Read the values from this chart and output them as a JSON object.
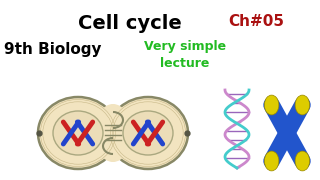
{
  "bg_color": "#ffffff",
  "title_text": "Cell cycle",
  "title_color": "#000000",
  "title_fontsize": 14,
  "ch_text": "Ch#05",
  "ch_color": "#aa1111",
  "ch_fontsize": 11,
  "bio_text": "9th Biology",
  "bio_color": "#000000",
  "bio_fontsize": 11,
  "simple_text": "Very simple\nlecture",
  "simple_color": "#22bb22",
  "simple_fontsize": 9,
  "cell_face": "#f2e4c0",
  "cell_edge": "#888866",
  "nucleus_face": "#ecddb8",
  "nucleus_edge": "#aaa880",
  "chr_red": "#cc2222",
  "chr_blue": "#2244cc",
  "dna_strand1": "#cc88cc",
  "dna_strand2": "#44cccc",
  "dna_rung": "#9966bb",
  "chrom_body": "#2255cc",
  "chrom_cap": "#ddcc00"
}
